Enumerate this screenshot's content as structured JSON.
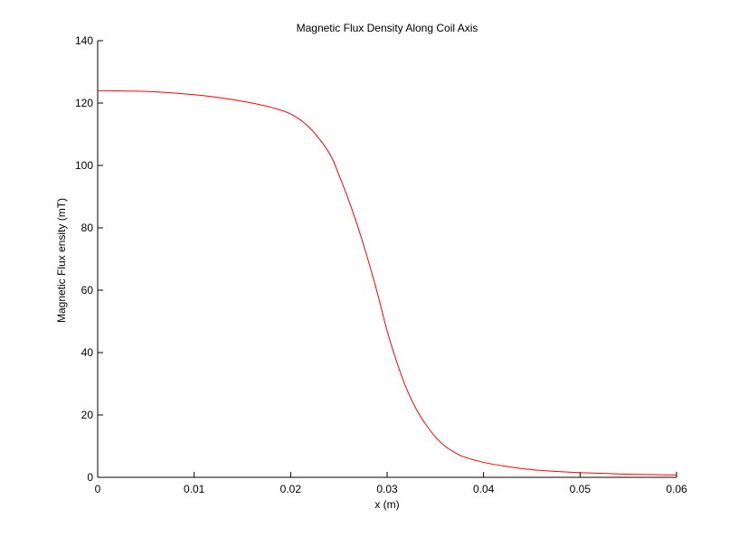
{
  "chart_data": {
    "type": "line",
    "title": "Magnetic Flux Density Along Coil Axis",
    "xlabel": "x (m)",
    "ylabel": "Magnetic Flux ensity (mT)",
    "xlim": [
      0,
      0.06
    ],
    "ylim": [
      0,
      140
    ],
    "xticks": [
      "0",
      "0.01",
      "0.02",
      "0.03",
      "0.04",
      "0.05",
      "0.06"
    ],
    "yticks": [
      "0",
      "20",
      "40",
      "60",
      "80",
      "100",
      "120",
      "140"
    ],
    "grid": false,
    "series": [
      {
        "color": "#ff0000",
        "x": [
          0,
          0.002,
          0.004,
          0.006,
          0.008,
          0.01,
          0.012,
          0.014,
          0.016,
          0.018,
          0.02,
          0.022,
          0.024,
          0.025,
          0.026,
          0.027,
          0.028,
          0.029,
          0.03,
          0.031,
          0.032,
          0.033,
          0.034,
          0.035,
          0.036,
          0.037,
          0.038,
          0.04,
          0.042,
          0.044,
          0.046,
          0.048,
          0.05,
          0.052,
          0.054,
          0.056,
          0.058,
          0.06
        ],
        "y": [
          124,
          123.9,
          123.8,
          123.6,
          123.2,
          122.7,
          122,
          121.1,
          120,
          118.6,
          116.5,
          112,
          104,
          97,
          89,
          80,
          70,
          59,
          47,
          37,
          28.5,
          22,
          17,
          13,
          10,
          8,
          6.5,
          4.8,
          3.7,
          2.8,
          2.2,
          1.8,
          1.5,
          1.3,
          1.1,
          0.95,
          0.85,
          0.75
        ]
      }
    ]
  }
}
